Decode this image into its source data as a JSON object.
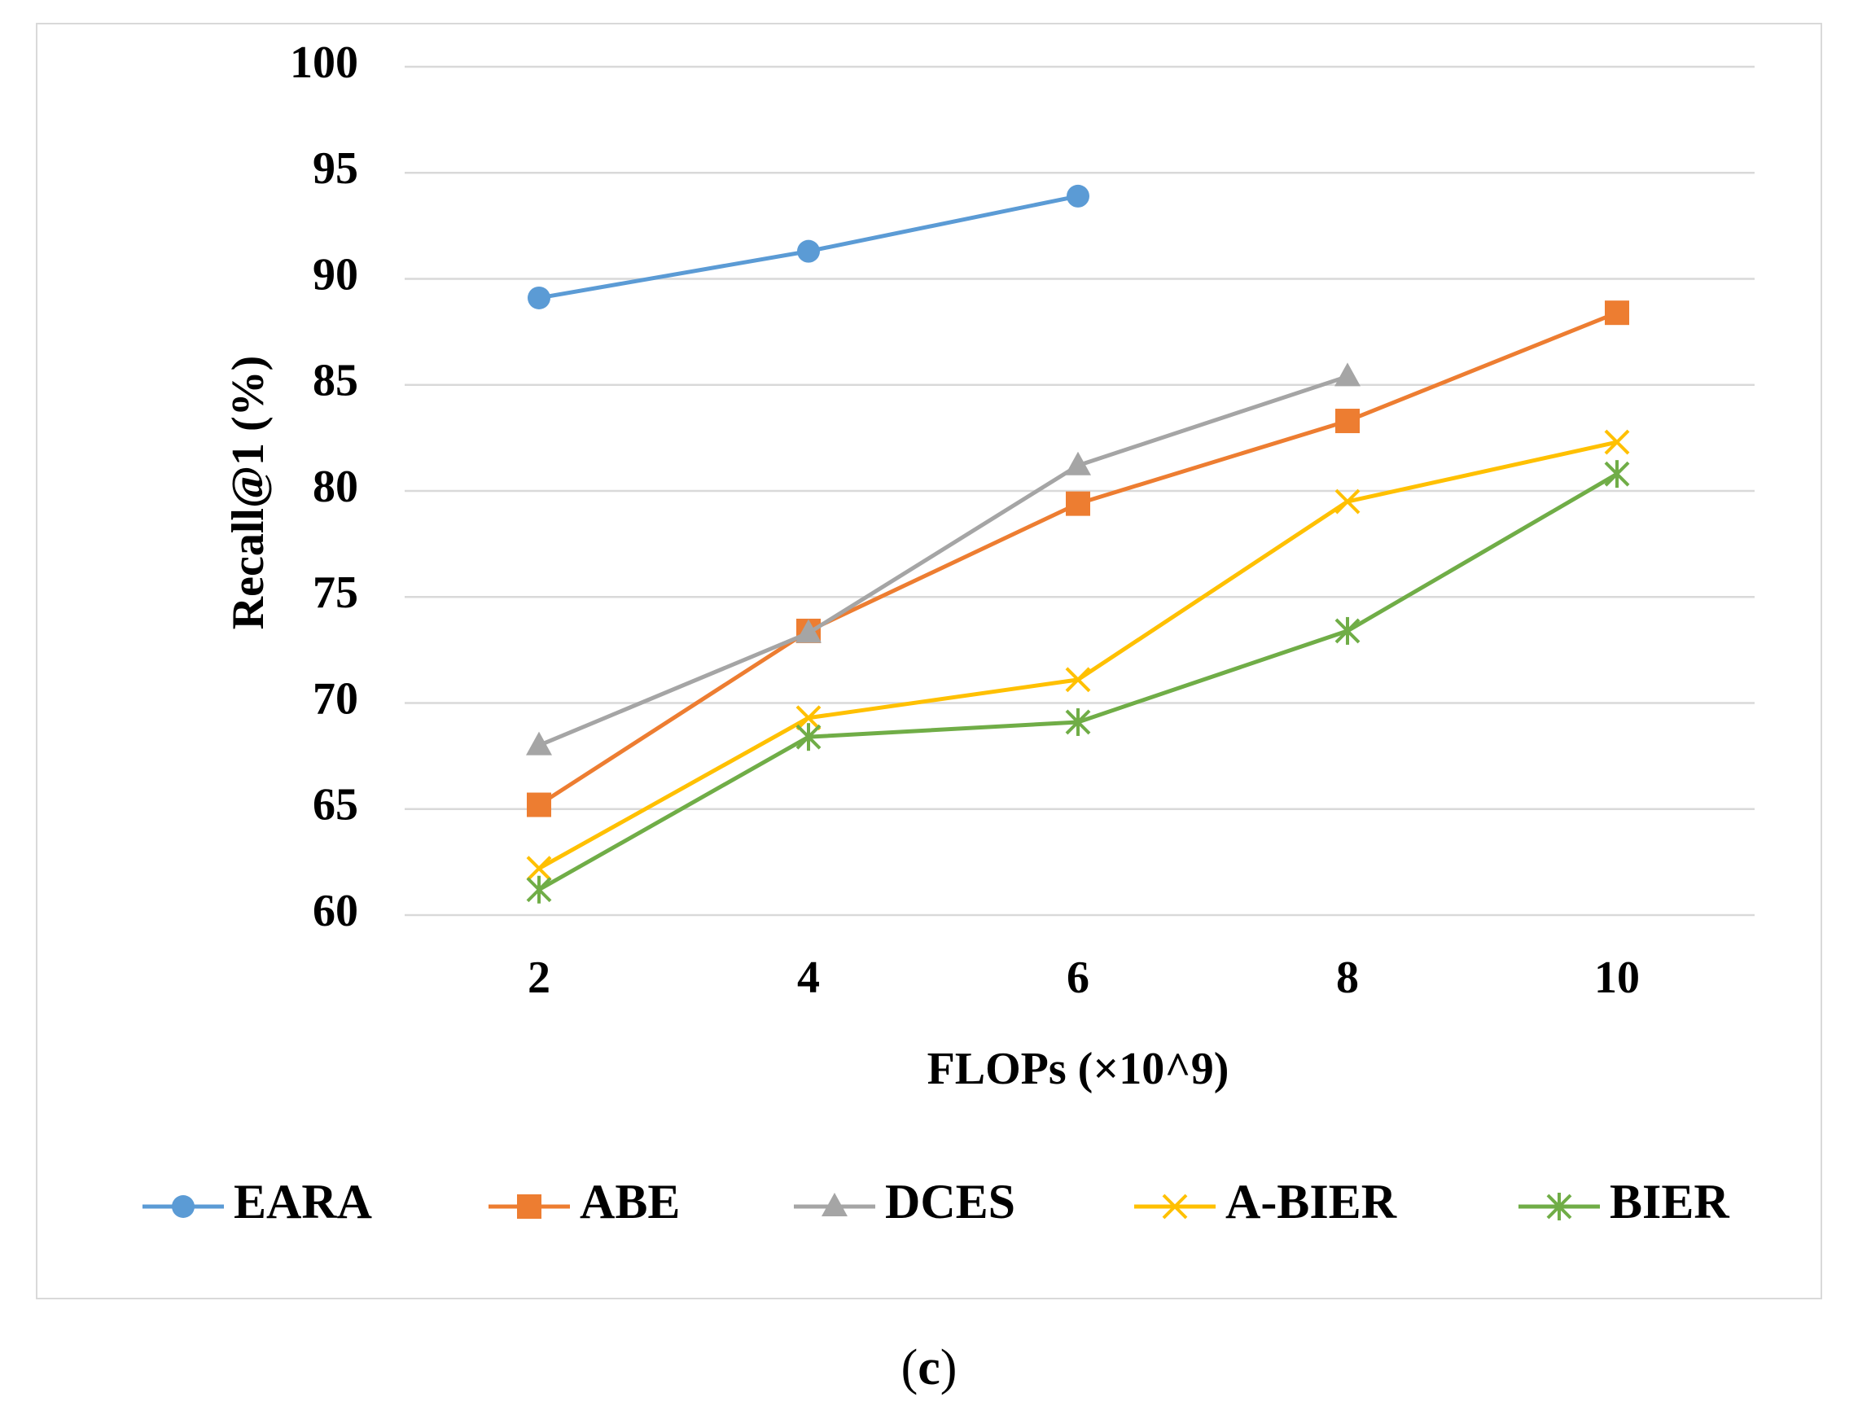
{
  "chart_data": {
    "type": "line",
    "title": "",
    "xlabel": "FLOPs (×10^9)",
    "ylabel": "Recall@1 (%)",
    "x": [
      2,
      4,
      6,
      8,
      10
    ],
    "xticks": [
      "2",
      "4",
      "6",
      "8",
      "10"
    ],
    "ylim": [
      60,
      100
    ],
    "yticks": [
      "60",
      "65",
      "70",
      "75",
      "80",
      "85",
      "90",
      "95",
      "100"
    ],
    "grid": "horizontal",
    "legend_position": "bottom",
    "series": [
      {
        "name": "EARA",
        "marker": "circle",
        "color": "#5b9bd5",
        "values": [
          89.1,
          91.3,
          93.9,
          null,
          null
        ]
      },
      {
        "name": "ABE",
        "marker": "square",
        "color": "#ed7d31",
        "values": [
          65.2,
          73.4,
          79.4,
          83.3,
          88.4
        ]
      },
      {
        "name": "DCES",
        "marker": "triangle",
        "color": "#a5a5a5",
        "values": [
          68.0,
          73.3,
          81.2,
          85.4,
          null
        ]
      },
      {
        "name": "A-BIER",
        "marker": "x",
        "color": "#ffc000",
        "values": [
          62.2,
          69.3,
          71.1,
          79.5,
          82.3
        ]
      },
      {
        "name": "BIER",
        "marker": "asterisk",
        "color": "#70ad47",
        "values": [
          61.2,
          68.4,
          69.1,
          73.4,
          80.8
        ]
      }
    ]
  },
  "panel_label": {
    "open": "(",
    "letter": "c",
    "close": ")"
  }
}
